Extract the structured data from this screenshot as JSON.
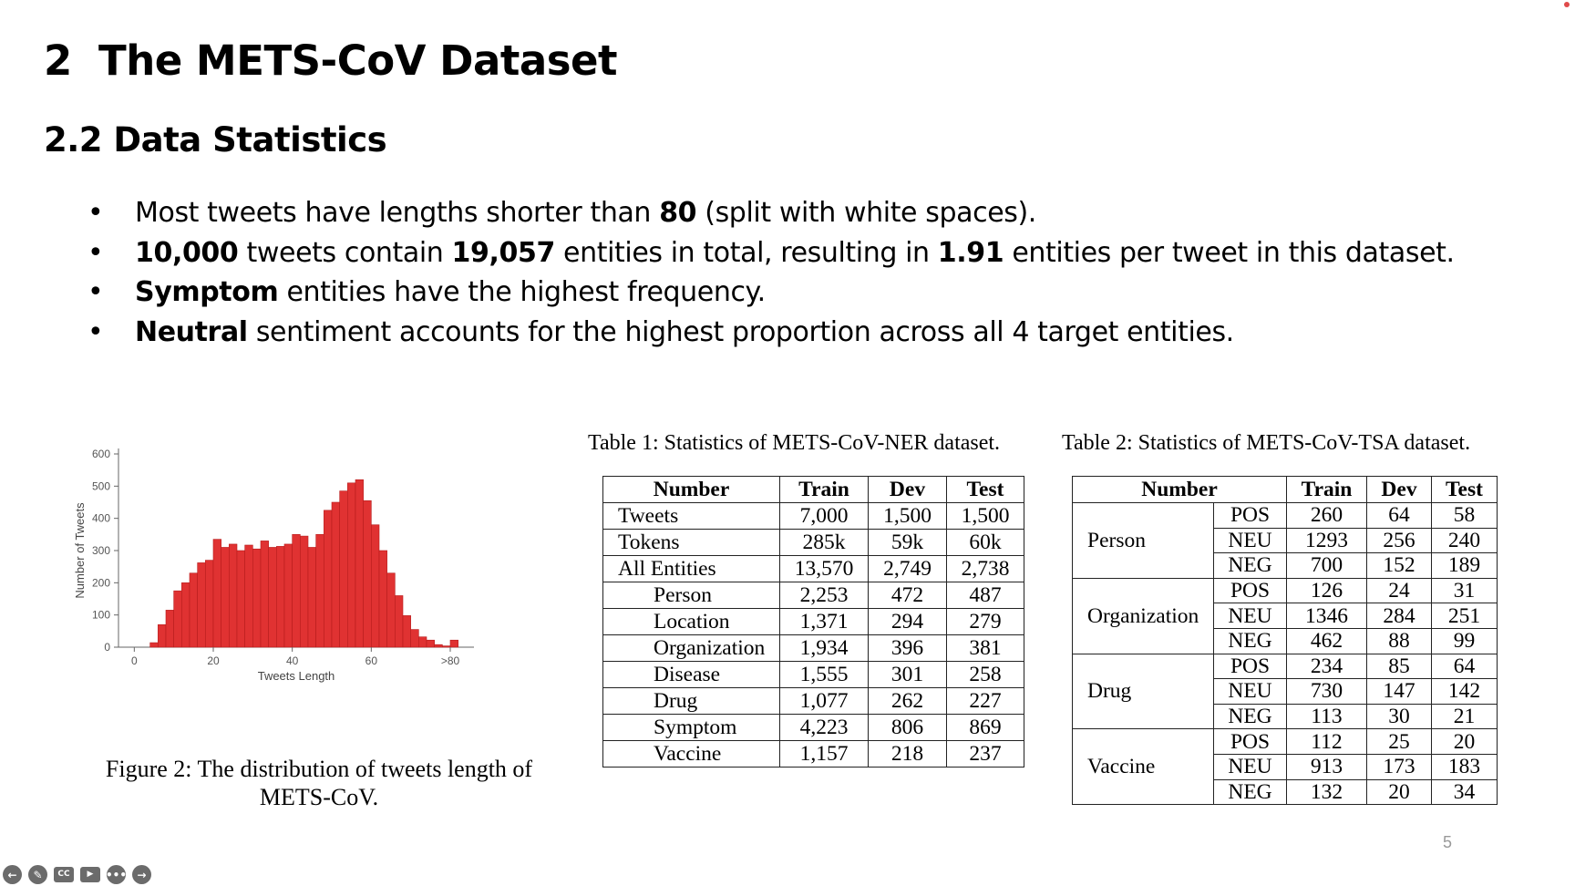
{
  "slide": {
    "section_number": "2",
    "section_title": "The METS-CoV Dataset",
    "subsection_title": "2.2 Data Statistics",
    "bullet_glyph": "•",
    "bullets": [
      [
        {
          "t": "Most tweets have lengths shorter than ",
          "b": false
        },
        {
          "t": "80",
          "b": true
        },
        {
          "t": " (split with white spaces).",
          "b": false
        }
      ],
      [
        {
          "t": "10,000",
          "b": true
        },
        {
          "t": " tweets contain ",
          "b": false
        },
        {
          "t": "19,057",
          "b": true
        },
        {
          "t": " entities in total, resulting in ",
          "b": false
        },
        {
          "t": "1.91",
          "b": true
        },
        {
          "t": " entities per tweet in this dataset.",
          "b": false
        }
      ],
      [
        {
          "t": "Symptom",
          "b": true
        },
        {
          "t": " entities have the highest frequency.",
          "b": false
        }
      ],
      [
        {
          "t": "Neutral",
          "b": true
        },
        {
          "t": " sentiment accounts for the highest proportion across all 4 target entities.",
          "b": false
        }
      ]
    ],
    "page_number": "5",
    "colors": {
      "bar": "#e03232",
      "bar_edge": "#b71c1c",
      "axis": "#666666",
      "toolbar_icon": "#6b6b6b"
    }
  },
  "chart_data": {
    "type": "bar",
    "xlabel": "Tweets Length",
    "ylabel": "Number of Tweets",
    "ylim": [
      0,
      600
    ],
    "yticks": [
      "0",
      "100",
      "200",
      "300",
      "400",
      "500",
      "600"
    ],
    "xticks": [
      {
        "label": "0",
        "at": 0
      },
      {
        "label": "20",
        "at": 20
      },
      {
        "label": "40",
        "at": 40
      },
      {
        "label": "60",
        "at": 60
      },
      {
        "label": ">80",
        "at": 80
      }
    ],
    "xlim": [
      -4,
      86
    ],
    "bin_width": 2,
    "bin_starts": [
      4,
      6,
      8,
      10,
      12,
      14,
      16,
      18,
      20,
      22,
      24,
      26,
      28,
      30,
      32,
      34,
      36,
      38,
      40,
      42,
      44,
      46,
      48,
      50,
      52,
      54,
      56,
      58,
      60,
      62,
      64,
      66,
      68,
      70,
      72,
      74,
      76,
      78,
      80
    ],
    "values": [
      14,
      70,
      115,
      175,
      200,
      230,
      262,
      270,
      335,
      310,
      320,
      300,
      317,
      305,
      330,
      310,
      313,
      320,
      350,
      345,
      310,
      350,
      425,
      450,
      485,
      510,
      520,
      455,
      380,
      300,
      230,
      160,
      98,
      55,
      32,
      22,
      8,
      4,
      22
    ],
    "grid": false,
    "legend": null
  },
  "figure": {
    "caption": "Figure 2: The distribution of tweets length of METS-CoV."
  },
  "table1": {
    "caption": "Table 1: Statistics of METS-CoV-NER dataset.",
    "headers": [
      "Number",
      "Train",
      "Dev",
      "Test"
    ],
    "rows": [
      {
        "label": "Tweets",
        "sub": false,
        "vals": [
          "7,000",
          "1,500",
          "1,500"
        ]
      },
      {
        "label": "Tokens",
        "sub": false,
        "vals": [
          "285k",
          "59k",
          "60k"
        ]
      },
      {
        "label": "All Entities",
        "sub": false,
        "vals": [
          "13,570",
          "2,749",
          "2,738"
        ]
      },
      {
        "label": "Person",
        "sub": true,
        "vals": [
          "2,253",
          "472",
          "487"
        ]
      },
      {
        "label": "Location",
        "sub": true,
        "vals": [
          "1,371",
          "294",
          "279"
        ]
      },
      {
        "label": "Organization",
        "sub": true,
        "vals": [
          "1,934",
          "396",
          "381"
        ]
      },
      {
        "label": "Disease",
        "sub": true,
        "vals": [
          "1,555",
          "301",
          "258"
        ]
      },
      {
        "label": "Drug",
        "sub": true,
        "vals": [
          "1,077",
          "262",
          "227"
        ]
      },
      {
        "label": "Symptom",
        "sub": true,
        "vals": [
          "4,223",
          "806",
          "869"
        ]
      },
      {
        "label": "Vaccine",
        "sub": true,
        "vals": [
          "1,157",
          "218",
          "237"
        ]
      }
    ]
  },
  "table2": {
    "caption": "Table 2: Statistics of METS-CoV-TSA dataset.",
    "headers": [
      "Number",
      "Train",
      "Dev",
      "Test"
    ],
    "groups": [
      {
        "entity": "Person",
        "rows": [
          [
            "POS",
            "260",
            "64",
            "58"
          ],
          [
            "NEU",
            "1293",
            "256",
            "240"
          ],
          [
            "NEG",
            "700",
            "152",
            "189"
          ]
        ]
      },
      {
        "entity": "Organization",
        "rows": [
          [
            "POS",
            "126",
            "24",
            "31"
          ],
          [
            "NEU",
            "1346",
            "284",
            "251"
          ],
          [
            "NEG",
            "462",
            "88",
            "99"
          ]
        ]
      },
      {
        "entity": "Drug",
        "rows": [
          [
            "POS",
            "234",
            "85",
            "64"
          ],
          [
            "NEU",
            "730",
            "147",
            "142"
          ],
          [
            "NEG",
            "113",
            "30",
            "21"
          ]
        ]
      },
      {
        "entity": "Vaccine",
        "rows": [
          [
            "POS",
            "112",
            "25",
            "20"
          ],
          [
            "NEU",
            "913",
            "173",
            "183"
          ],
          [
            "NEG",
            "132",
            "20",
            "34"
          ]
        ]
      }
    ]
  },
  "toolbar": {
    "icons": [
      "back-arrow-icon",
      "pen-icon",
      "closed-captions-icon",
      "camera-off-icon",
      "more-options-icon",
      "forward-arrow-icon"
    ],
    "glyphs": [
      "←",
      "✎",
      "CC",
      "▶",
      "•••",
      "→"
    ]
  }
}
